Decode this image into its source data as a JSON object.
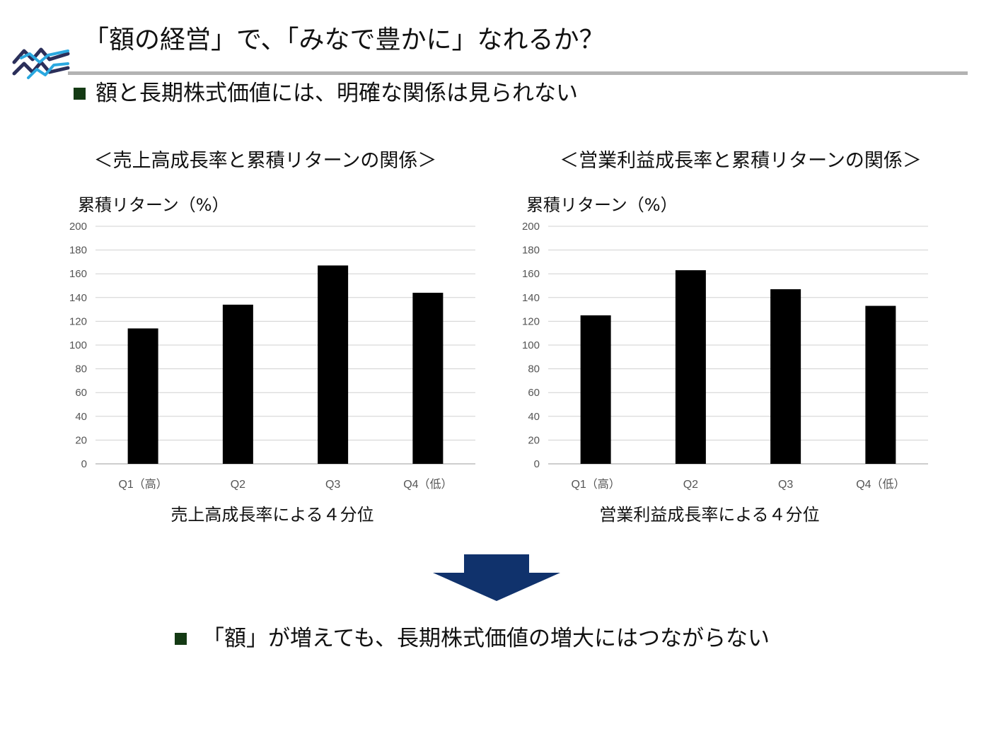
{
  "header": {
    "title": "「額の経営」で、「みなで豊かに」なれるか？",
    "logo_icon": "wave-lines-logo-icon"
  },
  "bullets": [
    {
      "text": "額と長期株式価値には、明確な関係は見られない",
      "icon": "square-bullet-icon"
    },
    {
      "text": "「額」が増えても、長期株式価値の増大にはつながらない",
      "icon": "square-bullet-icon"
    }
  ],
  "colors": {
    "bar": "#000000",
    "bullet": "#143a14",
    "arrow": "#10326c",
    "logo_dark": "#2b2f5a",
    "logo_light": "#2aa8e0",
    "rule": "#b3b3b3",
    "grid": "#d0d0d0",
    "axis_text": "#555555"
  },
  "arrow_icon": "down-arrow-icon",
  "chart_data": [
    {
      "type": "bar",
      "title": "＜売上高成長率と累積リターンの関係＞",
      "ylabel": "累積リターン（%）",
      "xlabel": "売上高成長率による４分位",
      "categories": [
        "Q1（高）",
        "Q2",
        "Q3",
        "Q4（低）"
      ],
      "values": [
        114,
        134,
        167,
        144
      ],
      "ylim": [
        0,
        200
      ],
      "yticks": [
        0,
        20,
        40,
        60,
        80,
        100,
        120,
        140,
        160,
        180,
        200
      ],
      "grid": true,
      "legend": "none"
    },
    {
      "type": "bar",
      "title": "＜営業利益成長率と累積リターンの関係＞",
      "ylabel": "累積リターン（%）",
      "xlabel": "営業利益成長率による４分位",
      "categories": [
        "Q1（高）",
        "Q2",
        "Q3",
        "Q4（低）"
      ],
      "values": [
        125,
        163,
        147,
        133
      ],
      "ylim": [
        0,
        200
      ],
      "yticks": [
        0,
        20,
        40,
        60,
        80,
        100,
        120,
        140,
        160,
        180,
        200
      ],
      "grid": true,
      "legend": "none"
    }
  ]
}
